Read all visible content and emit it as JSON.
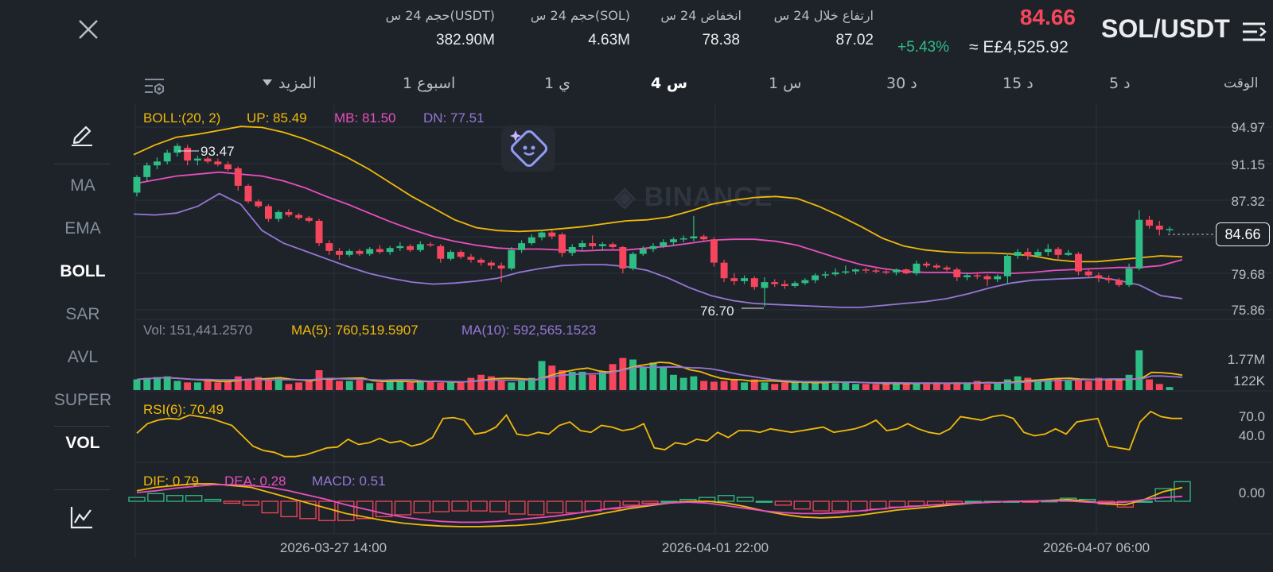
{
  "header": {
    "pair": "SOL/USDT",
    "last_price": "84.66",
    "change_pct": "+5.43%",
    "fiat_price": "≈ E£4,525.92",
    "stats": [
      {
        "label": "ارتفاع خلال 24 س",
        "value": "87.02"
      },
      {
        "label": "انخفاض 24 س",
        "value": "78.38"
      },
      {
        "label": "حجم 24 س(SOL)",
        "value": "4.63M"
      },
      {
        "label": "حجم 24 س(USDT)",
        "value": "382.90M"
      }
    ]
  },
  "timeframes": {
    "time_label": "الوقت",
    "items": [
      "5 د",
      "15 د",
      "30 د",
      "1 س",
      "4 س",
      "1 ي",
      "1 اسبوع",
      "المزيد"
    ],
    "active": "4 س"
  },
  "indicators": {
    "items": [
      "MA",
      "EMA",
      "BOLL",
      "SAR",
      "AVL",
      "SUPER",
      "VOL"
    ],
    "active": [
      "BOLL",
      "VOL"
    ]
  },
  "watermark": "BINANCE",
  "colors": {
    "up": "#2ebd85",
    "down": "#f6465d",
    "yellow": "#f0b90b",
    "pink": "#e84fbf",
    "purple": "#9577d6",
    "background": "#1e2329"
  },
  "price_panel": {
    "legend": {
      "boll": "BOLL:(20, 2)",
      "up": "UP: 85.49",
      "mb": "MB: 81.50",
      "dn": "DN: 77.51"
    },
    "y_ticks": [
      "94.97",
      "91.15",
      "87.32",
      "79.68",
      "75.86"
    ],
    "current_price_tag": "84.66",
    "high_marker": "93.47",
    "low_marker": "76.70"
  },
  "volume_panel": {
    "legend": {
      "vol": "Vol: 151,441.2570",
      "ma5": "MA(5): 760,519.5907",
      "ma10": "MA(10): 592,565.1523"
    },
    "y_ticks": [
      "1.77M",
      "122K"
    ]
  },
  "rsi_panel": {
    "legend": "RSI(6): 70.49",
    "y_ticks": [
      "70.0",
      "40.0"
    ]
  },
  "macd_panel": {
    "legend": {
      "dif": "DIF: 0.79",
      "dea": "DEA: 0.28",
      "macd": "MACD: 0.51"
    },
    "y_ticks": [
      "0.00"
    ]
  },
  "x_axis": [
    "2026-03-27 14:00",
    "2026-04-01 22:00",
    "2026-04-07 06:00"
  ],
  "chart_data": {
    "type": "candlestick",
    "x_axis_ticks": [
      "2026-03-27 14:00",
      "2026-04-01 22:00",
      "2026-04-07 06:00"
    ],
    "price_range": [
      75.86,
      94.97
    ],
    "candles": [
      {
        "o": 88.4,
        "h": 90.2,
        "l": 88.0,
        "c": 90.0
      },
      {
        "o": 90.0,
        "h": 91.5,
        "l": 89.6,
        "c": 91.2
      },
      {
        "o": 91.2,
        "h": 92.0,
        "l": 90.8,
        "c": 91.6
      },
      {
        "o": 91.6,
        "h": 92.8,
        "l": 91.3,
        "c": 92.5
      },
      {
        "o": 92.5,
        "h": 93.47,
        "l": 92.1,
        "c": 93.2
      },
      {
        "o": 93.0,
        "h": 93.3,
        "l": 91.2,
        "c": 91.7
      },
      {
        "o": 91.7,
        "h": 92.2,
        "l": 91.2,
        "c": 91.9
      },
      {
        "o": 91.9,
        "h": 92.1,
        "l": 91.4,
        "c": 91.6
      },
      {
        "o": 91.6,
        "h": 91.9,
        "l": 91.1,
        "c": 91.3
      },
      {
        "o": 91.3,
        "h": 91.6,
        "l": 90.6,
        "c": 90.8
      },
      {
        "o": 90.9,
        "h": 91.1,
        "l": 88.6,
        "c": 89.1
      },
      {
        "o": 89.1,
        "h": 89.3,
        "l": 87.3,
        "c": 87.5
      },
      {
        "o": 87.5,
        "h": 87.7,
        "l": 86.8,
        "c": 87.0
      },
      {
        "o": 87.0,
        "h": 87.2,
        "l": 85.4,
        "c": 85.7
      },
      {
        "o": 85.7,
        "h": 86.6,
        "l": 85.4,
        "c": 86.4
      },
      {
        "o": 86.4,
        "h": 86.7,
        "l": 85.9,
        "c": 86.1
      },
      {
        "o": 86.1,
        "h": 86.3,
        "l": 85.6,
        "c": 85.8
      },
      {
        "o": 85.8,
        "h": 86.0,
        "l": 85.3,
        "c": 85.5
      },
      {
        "o": 85.5,
        "h": 85.7,
        "l": 82.9,
        "c": 83.2
      },
      {
        "o": 83.2,
        "h": 83.5,
        "l": 82.0,
        "c": 82.4
      },
      {
        "o": 82.4,
        "h": 82.7,
        "l": 81.5,
        "c": 82.0
      },
      {
        "o": 82.0,
        "h": 82.6,
        "l": 81.8,
        "c": 82.4
      },
      {
        "o": 82.4,
        "h": 82.6,
        "l": 81.9,
        "c": 82.1
      },
      {
        "o": 82.1,
        "h": 82.8,
        "l": 81.9,
        "c": 82.6
      },
      {
        "o": 82.6,
        "h": 83.0,
        "l": 82.1,
        "c": 82.3
      },
      {
        "o": 82.3,
        "h": 82.9,
        "l": 82.0,
        "c": 82.7
      },
      {
        "o": 82.7,
        "h": 83.3,
        "l": 82.4,
        "c": 82.9
      },
      {
        "o": 82.9,
        "h": 83.1,
        "l": 82.3,
        "c": 82.5
      },
      {
        "o": 82.5,
        "h": 83.4,
        "l": 82.3,
        "c": 83.1
      },
      {
        "o": 83.1,
        "h": 83.3,
        "l": 82.8,
        "c": 83.0
      },
      {
        "o": 82.9,
        "h": 83.1,
        "l": 81.2,
        "c": 81.6
      },
      {
        "o": 81.6,
        "h": 82.5,
        "l": 81.4,
        "c": 82.3
      },
      {
        "o": 82.3,
        "h": 82.5,
        "l": 81.6,
        "c": 81.8
      },
      {
        "o": 81.8,
        "h": 82.1,
        "l": 81.2,
        "c": 81.5
      },
      {
        "o": 81.5,
        "h": 81.7,
        "l": 80.9,
        "c": 81.2
      },
      {
        "o": 81.2,
        "h": 81.4,
        "l": 80.5,
        "c": 80.9
      },
      {
        "o": 80.9,
        "h": 81.2,
        "l": 79.2,
        "c": 80.6
      },
      {
        "o": 80.6,
        "h": 82.8,
        "l": 80.4,
        "c": 82.5
      },
      {
        "o": 82.5,
        "h": 83.5,
        "l": 82.2,
        "c": 83.2
      },
      {
        "o": 83.2,
        "h": 84.1,
        "l": 83.0,
        "c": 83.8
      },
      {
        "o": 83.8,
        "h": 84.6,
        "l": 83.5,
        "c": 84.3
      },
      {
        "o": 84.3,
        "h": 84.5,
        "l": 83.6,
        "c": 83.9
      },
      {
        "o": 84.1,
        "h": 84.3,
        "l": 81.8,
        "c": 82.2
      },
      {
        "o": 82.2,
        "h": 83.1,
        "l": 81.9,
        "c": 82.8
      },
      {
        "o": 82.8,
        "h": 83.5,
        "l": 82.5,
        "c": 83.2
      },
      {
        "o": 83.2,
        "h": 84.0,
        "l": 82.6,
        "c": 82.9
      },
      {
        "o": 82.9,
        "h": 83.3,
        "l": 82.4,
        "c": 83.1
      },
      {
        "o": 83.1,
        "h": 83.3,
        "l": 82.6,
        "c": 82.8
      },
      {
        "o": 82.8,
        "h": 82.9,
        "l": 80.1,
        "c": 80.6
      },
      {
        "o": 80.6,
        "h": 82.3,
        "l": 80.4,
        "c": 82.1
      },
      {
        "o": 82.1,
        "h": 82.9,
        "l": 81.9,
        "c": 82.6
      },
      {
        "o": 82.6,
        "h": 83.2,
        "l": 82.3,
        "c": 82.9
      },
      {
        "o": 82.9,
        "h": 83.6,
        "l": 82.7,
        "c": 83.3
      },
      {
        "o": 83.3,
        "h": 83.8,
        "l": 83.0,
        "c": 83.6
      },
      {
        "o": 83.6,
        "h": 84.0,
        "l": 83.3,
        "c": 83.7
      },
      {
        "o": 83.7,
        "h": 86.0,
        "l": 83.4,
        "c": 83.9
      },
      {
        "o": 83.9,
        "h": 84.1,
        "l": 83.4,
        "c": 83.6
      },
      {
        "o": 83.6,
        "h": 83.8,
        "l": 80.8,
        "c": 81.2
      },
      {
        "o": 81.2,
        "h": 81.5,
        "l": 79.2,
        "c": 79.6
      },
      {
        "o": 79.6,
        "h": 80.1,
        "l": 78.9,
        "c": 79.3
      },
      {
        "o": 79.3,
        "h": 79.9,
        "l": 79.0,
        "c": 79.6
      },
      {
        "o": 79.6,
        "h": 79.8,
        "l": 78.4,
        "c": 78.7
      },
      {
        "o": 78.6,
        "h": 79.7,
        "l": 76.7,
        "c": 79.2
      },
      {
        "o": 79.2,
        "h": 79.5,
        "l": 78.7,
        "c": 79.0
      },
      {
        "o": 79.0,
        "h": 79.4,
        "l": 78.5,
        "c": 78.8
      },
      {
        "o": 78.8,
        "h": 79.3,
        "l": 78.6,
        "c": 79.1
      },
      {
        "o": 79.1,
        "h": 79.6,
        "l": 78.9,
        "c": 79.4
      },
      {
        "o": 79.4,
        "h": 80.1,
        "l": 79.1,
        "c": 79.9
      },
      {
        "o": 79.9,
        "h": 80.3,
        "l": 79.6,
        "c": 80.0
      },
      {
        "o": 80.0,
        "h": 80.6,
        "l": 79.8,
        "c": 80.2
      },
      {
        "o": 80.2,
        "h": 80.9,
        "l": 80.0,
        "c": 80.3
      },
      {
        "o": 80.3,
        "h": 80.6,
        "l": 80.0,
        "c": 80.5
      },
      {
        "o": 80.5,
        "h": 80.7,
        "l": 80.1,
        "c": 80.4
      },
      {
        "o": 80.4,
        "h": 80.6,
        "l": 80.1,
        "c": 80.3
      },
      {
        "o": 80.3,
        "h": 80.5,
        "l": 80.0,
        "c": 80.2
      },
      {
        "o": 80.2,
        "h": 80.6,
        "l": 79.9,
        "c": 80.5
      },
      {
        "o": 80.5,
        "h": 80.6,
        "l": 80.0,
        "c": 80.1
      },
      {
        "o": 80.1,
        "h": 81.4,
        "l": 79.9,
        "c": 81.1
      },
      {
        "o": 81.1,
        "h": 81.3,
        "l": 80.7,
        "c": 80.9
      },
      {
        "o": 80.9,
        "h": 81.1,
        "l": 80.5,
        "c": 80.7
      },
      {
        "o": 80.7,
        "h": 80.9,
        "l": 80.3,
        "c": 80.5
      },
      {
        "o": 80.5,
        "h": 80.7,
        "l": 79.3,
        "c": 79.7
      },
      {
        "o": 79.7,
        "h": 80.2,
        "l": 79.4,
        "c": 79.9
      },
      {
        "o": 79.9,
        "h": 80.1,
        "l": 79.5,
        "c": 79.8
      },
      {
        "o": 79.8,
        "h": 80.0,
        "l": 78.8,
        "c": 79.5
      },
      {
        "o": 79.5,
        "h": 80.0,
        "l": 79.2,
        "c": 79.8
      },
      {
        "o": 79.8,
        "h": 82.2,
        "l": 79.0,
        "c": 81.9
      },
      {
        "o": 81.9,
        "h": 82.6,
        "l": 81.6,
        "c": 82.3
      },
      {
        "o": 82.3,
        "h": 82.7,
        "l": 81.5,
        "c": 81.9
      },
      {
        "o": 81.9,
        "h": 82.6,
        "l": 81.7,
        "c": 82.3
      },
      {
        "o": 82.3,
        "h": 83.1,
        "l": 81.9,
        "c": 82.6
      },
      {
        "o": 82.6,
        "h": 82.8,
        "l": 81.6,
        "c": 82.0
      },
      {
        "o": 82.0,
        "h": 82.5,
        "l": 81.9,
        "c": 82.2
      },
      {
        "o": 82.1,
        "h": 82.3,
        "l": 79.9,
        "c": 80.3
      },
      {
        "o": 80.3,
        "h": 80.5,
        "l": 79.6,
        "c": 79.9
      },
      {
        "o": 79.9,
        "h": 80.2,
        "l": 79.2,
        "c": 79.6
      },
      {
        "o": 79.6,
        "h": 79.9,
        "l": 79.1,
        "c": 79.4
      },
      {
        "o": 79.4,
        "h": 79.6,
        "l": 78.7,
        "c": 78.9
      },
      {
        "o": 78.9,
        "h": 81.1,
        "l": 78.7,
        "c": 80.6
      },
      {
        "o": 80.6,
        "h": 86.6,
        "l": 80.4,
        "c": 85.6
      },
      {
        "o": 85.6,
        "h": 86.0,
        "l": 84.7,
        "c": 85.0
      },
      {
        "o": 85.0,
        "h": 85.5,
        "l": 84.0,
        "c": 84.6
      },
      {
        "o": 84.6,
        "h": 84.9,
        "l": 84.3,
        "c": 84.66
      }
    ],
    "boll_up": [
      92.3,
      93.3,
      94.1,
      94.4,
      94.8,
      95.2,
      95.1,
      94.6,
      93.9,
      93.0,
      92.0,
      90.8,
      89.4,
      88.0,
      86.8,
      85.6,
      84.8,
      84.5,
      84.4,
      84.5,
      84.7,
      84.9,
      85.2,
      85.5,
      85.6,
      85.9,
      86.5,
      87.2,
      87.6,
      87.9,
      88.0,
      87.8,
      87.0,
      86.0,
      84.9,
      83.7,
      82.9,
      82.5,
      82.3,
      82.2,
      82.2,
      82.1,
      81.9,
      81.5,
      81.3,
      81.3,
      81.5,
      81.7,
      81.9,
      81.8
    ],
    "boll_mb": [
      89.3,
      89.7,
      90.1,
      90.3,
      90.5,
      90.3,
      90.1,
      89.6,
      88.9,
      88.0,
      87.2,
      86.3,
      85.4,
      84.6,
      83.9,
      83.4,
      83.0,
      82.7,
      82.6,
      82.6,
      82.5,
      82.4,
      82.5,
      82.5,
      82.7,
      82.9,
      83.2,
      83.5,
      83.6,
      83.6,
      83.4,
      83.0,
      82.3,
      81.6,
      81.0,
      80.6,
      80.3,
      80.2,
      80.2,
      80.1,
      80.2,
      80.1,
      80.2,
      80.4,
      80.5,
      80.6,
      80.7,
      80.7,
      80.9,
      81.5
    ],
    "boll_dn": [
      86.2,
      86.1,
      86.3,
      87.0,
      88.3,
      87.2,
      84.5,
      83.2,
      82.4,
      81.6,
      80.8,
      80.1,
      79.6,
      79.2,
      79.0,
      79.1,
      79.3,
      79.6,
      80.2,
      80.6,
      80.9,
      81.0,
      81.0,
      80.8,
      80.4,
      79.6,
      78.6,
      77.8,
      77.3,
      77.0,
      76.9,
      76.8,
      76.7,
      76.6,
      76.6,
      76.8,
      77.0,
      77.2,
      77.5,
      78.0,
      78.6,
      79.1,
      79.4,
      79.5,
      79.6,
      79.7,
      79.4,
      78.9,
      77.8,
      77.5
    ],
    "volume": [
      14,
      16,
      17,
      18,
      12,
      10,
      10,
      14,
      10,
      12,
      18,
      15,
      17,
      14,
      17,
      8,
      10,
      12,
      26,
      16,
      12,
      12,
      13,
      9,
      10,
      13,
      12,
      10,
      11,
      12,
      10,
      10,
      11,
      16,
      20,
      18,
      12,
      10,
      12,
      16,
      38,
      32,
      26,
      24,
      24,
      20,
      24,
      34,
      42,
      40,
      30,
      36,
      30,
      20,
      16,
      18,
      12,
      11,
      12,
      14,
      10,
      14,
      10,
      8,
      10,
      10,
      11,
      10,
      12,
      9,
      10,
      8,
      8,
      8,
      10,
      8,
      10,
      9,
      8,
      10,
      8,
      10,
      10,
      12,
      8,
      10,
      14,
      18,
      16,
      14,
      14,
      16,
      12,
      14,
      12,
      16,
      14,
      14,
      20,
      52,
      14,
      8,
      4
    ],
    "rsi": [
      55,
      66,
      70,
      72,
      71,
      76,
      74,
      72,
      68,
      64,
      52,
      40,
      35,
      33,
      28,
      28,
      30,
      34,
      38,
      39,
      48,
      42,
      44,
      49,
      44,
      46,
      40,
      43,
      50,
      72,
      73,
      70,
      54,
      56,
      62,
      76,
      54,
      52,
      56,
      54,
      64,
      68,
      58,
      56,
      64,
      62,
      58,
      60,
      66,
      38,
      36,
      44,
      42,
      48,
      46,
      56,
      50,
      58,
      58,
      56,
      60,
      58,
      56,
      58,
      60,
      62,
      56,
      58,
      60,
      64,
      70,
      58,
      60,
      66,
      60,
      56,
      54,
      60,
      74,
      72,
      70,
      74,
      76,
      72,
      56,
      52,
      54,
      60,
      54,
      68,
      70,
      72,
      40,
      38,
      36,
      68,
      80,
      74,
      72,
      72
    ],
    "macd_dif": [
      0.6,
      0.8,
      0.9,
      1.0,
      1.0,
      0.9,
      0.8,
      0.5,
      0.2,
      -0.1,
      -0.4,
      -0.7,
      -0.9,
      -1.1,
      -1.25,
      -1.35,
      -1.42,
      -1.45,
      -1.45,
      -1.42,
      -1.38,
      -1.3,
      -1.15,
      -1.0,
      -0.8,
      -0.6,
      -0.4,
      -0.25,
      -0.1,
      0.0,
      0.0,
      -0.1,
      -0.3,
      -0.55,
      -0.75,
      -0.9,
      -0.95,
      -0.9,
      -0.8,
      -0.65,
      -0.5,
      -0.4,
      -0.3,
      -0.2,
      -0.1,
      -0.05,
      0.0,
      0.0,
      0.05,
      0.1,
      0.0,
      -0.15,
      -0.2,
      0.1,
      0.55,
      0.79
    ],
    "macd_dea": [
      0.5,
      0.6,
      0.75,
      0.85,
      0.95,
      0.95,
      0.9,
      0.8,
      0.6,
      0.35,
      0.1,
      -0.2,
      -0.45,
      -0.7,
      -0.9,
      -1.05,
      -1.15,
      -1.2,
      -1.2,
      -1.15,
      -1.05,
      -0.95,
      -0.85,
      -0.7,
      -0.55,
      -0.4,
      -0.3,
      -0.2,
      -0.1,
      -0.05,
      -0.1,
      -0.25,
      -0.4,
      -0.55,
      -0.65,
      -0.7,
      -0.7,
      -0.65,
      -0.55,
      -0.45,
      -0.35,
      -0.28,
      -0.2,
      -0.15,
      -0.1,
      -0.05,
      0.0,
      0.02,
      0.04,
      0.02,
      -0.05,
      -0.08,
      -0.05,
      0.1,
      0.22,
      0.28
    ]
  }
}
